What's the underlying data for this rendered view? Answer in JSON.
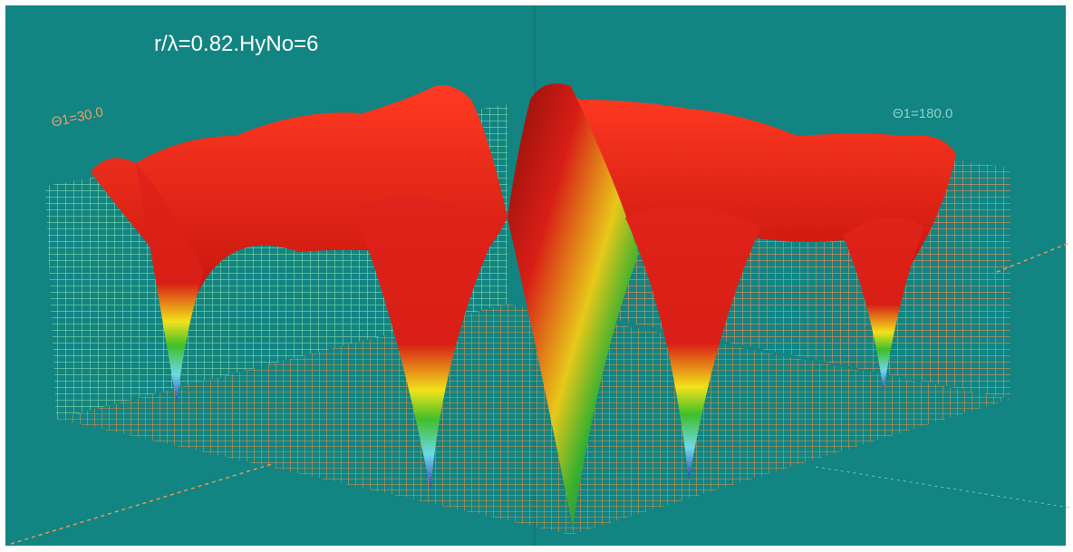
{
  "title": "r/λ=0.82.HyNo=6",
  "axis_labels": {
    "left": "Θ1=30.0",
    "right": "Θ1=180.0"
  }
}
